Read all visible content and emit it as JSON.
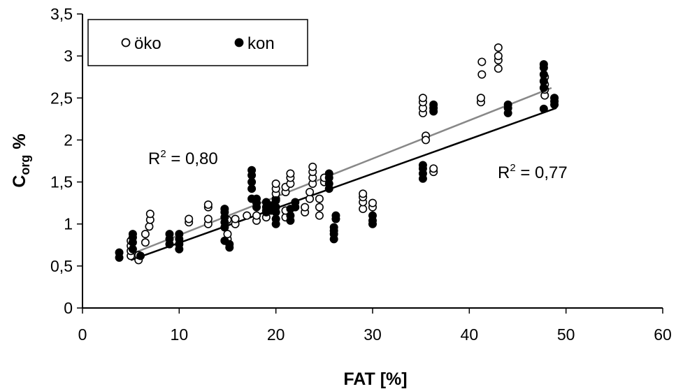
{
  "chart_data": {
    "type": "scatter",
    "xlabel": "FAT [%]",
    "ylabel_main": "C",
    "ylabel_sub": "org",
    "ylabel_unit": "%",
    "xlim": [
      0,
      60
    ],
    "ylim": [
      0,
      3.5
    ],
    "x_ticks": [
      {
        "v": 0,
        "label": "0"
      },
      {
        "v": 10,
        "label": "10"
      },
      {
        "v": 20,
        "label": "20"
      },
      {
        "v": 30,
        "label": "30"
      },
      {
        "v": 40,
        "label": "40"
      },
      {
        "v": 50,
        "label": "50"
      },
      {
        "v": 60,
        "label": "60"
      }
    ],
    "y_ticks": [
      {
        "v": 0,
        "label": "0"
      },
      {
        "v": 0.5,
        "label": "0,5"
      },
      {
        "v": 1,
        "label": "1"
      },
      {
        "v": 1.5,
        "label": "1,5"
      },
      {
        "v": 2,
        "label": "2"
      },
      {
        "v": 2.5,
        "label": "2,5"
      },
      {
        "v": 3,
        "label": "3"
      },
      {
        "v": 3.5,
        "label": "3,5"
      }
    ],
    "grid": false,
    "legend_position": "top-left",
    "series": [
      {
        "name": "öko",
        "marker": "open-circle",
        "color": "#ffffff",
        "stroke": "#000000",
        "points": [
          [
            5,
            0.62
          ],
          [
            5,
            0.68
          ],
          [
            5,
            0.74
          ],
          [
            5,
            0.8
          ],
          [
            5.8,
            0.57
          ],
          [
            5.8,
            0.63
          ],
          [
            6.5,
            0.78
          ],
          [
            6.5,
            0.88
          ],
          [
            6.9,
            0.97
          ],
          [
            7,
            1.05
          ],
          [
            7,
            1.12
          ],
          [
            11,
            1.02
          ],
          [
            11,
            1.06
          ],
          [
            13,
            1.0
          ],
          [
            13,
            1.06
          ],
          [
            13,
            1.2
          ],
          [
            13,
            1.23
          ],
          [
            15,
            0.82
          ],
          [
            15,
            0.88
          ],
          [
            15,
            1.05
          ],
          [
            15.8,
            1.0
          ],
          [
            15.8,
            1.06
          ],
          [
            17,
            1.1
          ],
          [
            18,
            1.04
          ],
          [
            18,
            1.1
          ],
          [
            19,
            1.08
          ],
          [
            19,
            1.16
          ],
          [
            20,
            1.3
          ],
          [
            20,
            1.36
          ],
          [
            20,
            1.42
          ],
          [
            20,
            1.48
          ],
          [
            21,
            1.08
          ],
          [
            21,
            1.16
          ],
          [
            21,
            1.38
          ],
          [
            21,
            1.44
          ],
          [
            21.5,
            1.48
          ],
          [
            21.5,
            1.55
          ],
          [
            21.5,
            1.6
          ],
          [
            23,
            1.14
          ],
          [
            23,
            1.2
          ],
          [
            23.5,
            1.3
          ],
          [
            23.5,
            1.38
          ],
          [
            23.8,
            1.48
          ],
          [
            23.8,
            1.55
          ],
          [
            23.8,
            1.62
          ],
          [
            23.8,
            1.68
          ],
          [
            24.5,
            1.1
          ],
          [
            24.5,
            1.2
          ],
          [
            24.5,
            1.3
          ],
          [
            25,
            1.5
          ],
          [
            25,
            1.55
          ],
          [
            29,
            1.18
          ],
          [
            29,
            1.26
          ],
          [
            29,
            1.32
          ],
          [
            29,
            1.36
          ],
          [
            30,
            1.2
          ],
          [
            30,
            1.25
          ],
          [
            35.2,
            2.32
          ],
          [
            35.2,
            2.38
          ],
          [
            35.2,
            2.45
          ],
          [
            35.2,
            2.5
          ],
          [
            35.5,
            2.05
          ],
          [
            35.5,
            2.0
          ],
          [
            36.3,
            1.62
          ],
          [
            36.3,
            1.66
          ],
          [
            41.2,
            2.45
          ],
          [
            41.2,
            2.5
          ],
          [
            41.3,
            2.78
          ],
          [
            41.3,
            2.93
          ],
          [
            43,
            2.85
          ],
          [
            43,
            2.95
          ],
          [
            43,
            3.0
          ],
          [
            43,
            3.1
          ],
          [
            47.8,
            2.53
          ],
          [
            47.8,
            2.6
          ],
          [
            47.8,
            2.66
          ],
          [
            47.8,
            2.75
          ]
        ]
      },
      {
        "name": "kon",
        "marker": "filled-circle",
        "color": "#000000",
        "stroke": "#000000",
        "points": [
          [
            3.8,
            0.6
          ],
          [
            3.8,
            0.66
          ],
          [
            5.2,
            0.7
          ],
          [
            5.2,
            0.78
          ],
          [
            5.2,
            0.84
          ],
          [
            5.2,
            0.88
          ],
          [
            6,
            0.62
          ],
          [
            9,
            0.76
          ],
          [
            9,
            0.82
          ],
          [
            9,
            0.88
          ],
          [
            10,
            0.7
          ],
          [
            10,
            0.76
          ],
          [
            10,
            0.82
          ],
          [
            10,
            0.88
          ],
          [
            14.7,
            0.8
          ],
          [
            14.7,
            0.96
          ],
          [
            14.7,
            1.02
          ],
          [
            14.7,
            1.08
          ],
          [
            14.7,
            1.14
          ],
          [
            14.7,
            1.18
          ],
          [
            15.2,
            0.72
          ],
          [
            15.2,
            0.76
          ],
          [
            17.5,
            1.3
          ],
          [
            17.5,
            1.42
          ],
          [
            17.5,
            1.5
          ],
          [
            17.5,
            1.58
          ],
          [
            17.5,
            1.64
          ],
          [
            18,
            1.2
          ],
          [
            18,
            1.25
          ],
          [
            18,
            1.3
          ],
          [
            19,
            1.14
          ],
          [
            19,
            1.2
          ],
          [
            19,
            1.26
          ],
          [
            19.5,
            1.16
          ],
          [
            19.5,
            1.22
          ],
          [
            20,
            1.0
          ],
          [
            20,
            1.06
          ],
          [
            20,
            1.14
          ],
          [
            20,
            1.2
          ],
          [
            20,
            1.28
          ],
          [
            21.5,
            1.04
          ],
          [
            21.5,
            1.1
          ],
          [
            21.5,
            1.18
          ],
          [
            22,
            1.2
          ],
          [
            22,
            1.26
          ],
          [
            25.5,
            1.42
          ],
          [
            25.5,
            1.48
          ],
          [
            25.5,
            1.55
          ],
          [
            25.5,
            1.6
          ],
          [
            26,
            0.82
          ],
          [
            26,
            0.88
          ],
          [
            26,
            0.92
          ],
          [
            26,
            0.96
          ],
          [
            26.2,
            1.06
          ],
          [
            26.2,
            1.1
          ],
          [
            30,
            1.0
          ],
          [
            30,
            1.04
          ],
          [
            30,
            1.1
          ],
          [
            35.2,
            1.54
          ],
          [
            35.2,
            1.6
          ],
          [
            35.2,
            1.66
          ],
          [
            35.2,
            1.7
          ],
          [
            36.3,
            2.34
          ],
          [
            36.3,
            2.38
          ],
          [
            36.3,
            2.42
          ],
          [
            44,
            2.32
          ],
          [
            44,
            2.38
          ],
          [
            44,
            2.42
          ],
          [
            47.7,
            2.37
          ],
          [
            47.7,
            2.62
          ],
          [
            47.7,
            2.7
          ],
          [
            47.7,
            2.78
          ],
          [
            47.7,
            2.86
          ],
          [
            47.7,
            2.9
          ],
          [
            48.8,
            2.42
          ],
          [
            48.8,
            2.46
          ],
          [
            48.8,
            2.5
          ]
        ]
      }
    ],
    "trendlines": [
      {
        "series": "öko",
        "color": "#888888",
        "x": [
          5,
          48.5
        ],
        "y": [
          0.64,
          2.62
        ]
      },
      {
        "series": "kon",
        "color": "#000000",
        "x": [
          5,
          49
        ],
        "y": [
          0.57,
          2.38
        ]
      }
    ],
    "annotations": [
      {
        "label": "R",
        "superscript": "2",
        "value_text": " = 0,80"
      },
      {
        "label": "R",
        "superscript": "2",
        "value_text": " = 0,77"
      }
    ]
  }
}
